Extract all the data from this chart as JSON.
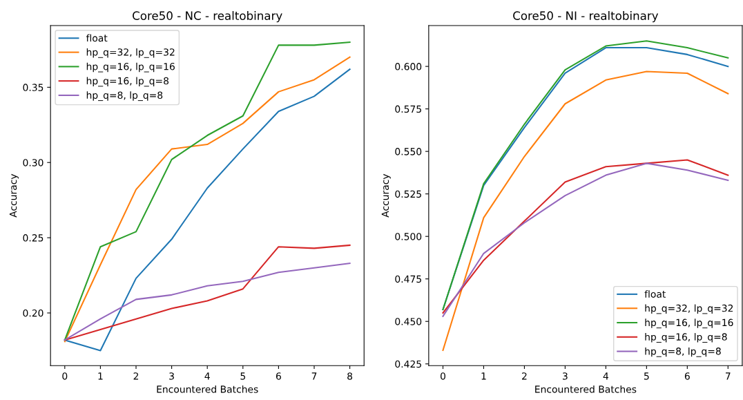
{
  "chart_data": [
    {
      "type": "line",
      "title": "Core50 - NC - realtobinary",
      "xlabel": "Encountered Batches",
      "ylabel": "Accuracy",
      "x": [
        0,
        1,
        2,
        3,
        4,
        5,
        6,
        7,
        8
      ],
      "xlim": [
        -0.4,
        8.4
      ],
      "xticks": [
        0,
        1,
        2,
        3,
        4,
        5,
        6,
        7,
        8
      ],
      "ylim": [
        0.165,
        0.391
      ],
      "yticks": [
        {
          "value": 0.2,
          "label": "0.20"
        },
        {
          "value": 0.25,
          "label": "0.25"
        },
        {
          "value": 0.3,
          "label": "0.30"
        },
        {
          "value": 0.35,
          "label": "0.35"
        }
      ],
      "grid": false,
      "legend": "top left",
      "series": [
        {
          "name": "float",
          "color": "#1f77b4",
          "values": [
            0.182,
            0.175,
            0.223,
            0.249,
            0.283,
            0.309,
            0.334,
            0.344,
            0.362
          ]
        },
        {
          "name": "hp_q=32, lp_q=32",
          "color": "#ff7f0e",
          "values": [
            0.181,
            0.232,
            0.282,
            0.309,
            0.312,
            0.326,
            0.347,
            0.355,
            0.37
          ]
        },
        {
          "name": "hp_q=16, lp_q=16",
          "color": "#2ca02c",
          "values": [
            0.182,
            0.244,
            0.254,
            0.302,
            0.318,
            0.331,
            0.378,
            0.378,
            0.38
          ]
        },
        {
          "name": "hp_q=16, lp_q=8",
          "color": "#d62728",
          "values": [
            0.182,
            0.189,
            0.196,
            0.203,
            0.208,
            0.216,
            0.244,
            0.243,
            0.245
          ]
        },
        {
          "name": "hp_q=8, lp_q=8",
          "color": "#9467bd",
          "values": [
            0.182,
            0.196,
            0.209,
            0.212,
            0.218,
            0.221,
            0.227,
            0.23,
            0.233
          ]
        }
      ]
    },
    {
      "type": "line",
      "title": "Core50 - NI - realtobinary",
      "xlabel": "Encountered Batches",
      "ylabel": "Accuracy",
      "x": [
        0,
        1,
        2,
        3,
        4,
        5,
        6,
        7
      ],
      "xlim": [
        -0.35,
        7.35
      ],
      "xticks": [
        0,
        1,
        2,
        3,
        4,
        5,
        6,
        7
      ],
      "ylim": [
        0.424,
        0.624
      ],
      "yticks": [
        {
          "value": 0.425,
          "label": "0.425"
        },
        {
          "value": 0.45,
          "label": "0.450"
        },
        {
          "value": 0.475,
          "label": "0.475"
        },
        {
          "value": 0.5,
          "label": "0.500"
        },
        {
          "value": 0.525,
          "label": "0.525"
        },
        {
          "value": 0.55,
          "label": "0.550"
        },
        {
          "value": 0.575,
          "label": "0.575"
        },
        {
          "value": 0.6,
          "label": "0.600"
        }
      ],
      "grid": false,
      "legend": "bottom right",
      "series": [
        {
          "name": "float",
          "color": "#1f77b4",
          "values": [
            0.457,
            0.53,
            0.564,
            0.596,
            0.611,
            0.611,
            0.607,
            0.6
          ]
        },
        {
          "name": "hp_q=32, lp_q=32",
          "color": "#ff7f0e",
          "values": [
            0.433,
            0.511,
            0.547,
            0.578,
            0.592,
            0.597,
            0.596,
            0.584
          ]
        },
        {
          "name": "hp_q=16, lp_q=16",
          "color": "#2ca02c",
          "values": [
            0.457,
            0.531,
            0.566,
            0.598,
            0.612,
            0.615,
            0.611,
            0.605
          ]
        },
        {
          "name": "hp_q=16, lp_q=8",
          "color": "#d62728",
          "values": [
            0.455,
            0.486,
            0.509,
            0.532,
            0.541,
            0.543,
            0.545,
            0.536
          ]
        },
        {
          "name": "hp_q=8, lp_q=8",
          "color": "#9467bd",
          "values": [
            0.453,
            0.49,
            0.508,
            0.524,
            0.536,
            0.543,
            0.539,
            0.533
          ]
        }
      ]
    }
  ]
}
